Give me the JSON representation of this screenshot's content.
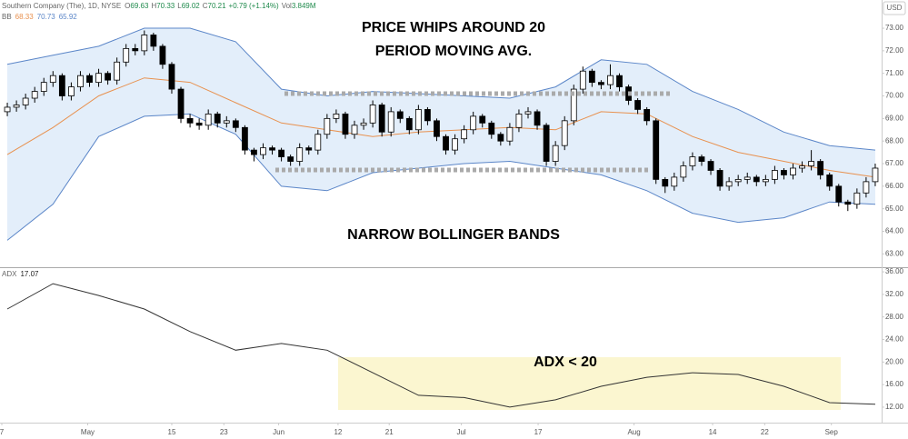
{
  "header": {
    "symbol": "Southern Company (The), 1D, NYSE",
    "ohlc": [
      {
        "label": "O",
        "value": "69.63"
      },
      {
        "label": "H",
        "value": "70.33"
      },
      {
        "label": "L",
        "value": "69.02"
      },
      {
        "label": "C",
        "value": "70.21"
      }
    ],
    "change": "+0.79 (+1.14%)",
    "volume_label": "Vol",
    "volume": "3.849M",
    "bb_label": "BB",
    "bb_values": [
      "68.33",
      "70.73",
      "65.92"
    ],
    "currency": "USD"
  },
  "annotations": [
    "PRICE WHIPS AROUND 20",
    "PERIOD MOVING AVG.",
    "NARROW BOLLINGER BANDS",
    "ADX < 20"
  ],
  "chart_data": [
    {
      "type": "candlestick",
      "up_color": "#ffffff",
      "down_color": "#000000",
      "candles": [
        [
          69.3,
          69.7,
          69.1,
          69.5
        ],
        [
          69.5,
          69.8,
          69.3,
          69.6
        ],
        [
          69.6,
          70.1,
          69.4,
          69.9
        ],
        [
          69.9,
          70.4,
          69.7,
          70.2
        ],
        [
          70.2,
          70.8,
          70.0,
          70.6
        ],
        [
          70.6,
          71.1,
          70.4,
          70.9
        ],
        [
          70.9,
          71.0,
          69.8,
          70.0
        ],
        [
          70.0,
          70.6,
          69.8,
          70.4
        ],
        [
          70.4,
          71.1,
          70.2,
          70.9
        ],
        [
          70.9,
          71.0,
          70.4,
          70.6
        ],
        [
          70.6,
          71.2,
          70.4,
          71.0
        ],
        [
          71.0,
          71.1,
          70.5,
          70.7
        ],
        [
          70.7,
          71.7,
          70.5,
          71.5
        ],
        [
          71.5,
          72.3,
          71.3,
          72.1
        ],
        [
          72.1,
          72.3,
          71.8,
          72.0
        ],
        [
          72.0,
          72.9,
          71.8,
          72.7
        ],
        [
          72.7,
          72.8,
          72.0,
          72.2
        ],
        [
          72.2,
          72.3,
          71.2,
          71.4
        ],
        [
          71.4,
          71.5,
          70.1,
          70.3
        ],
        [
          70.3,
          70.4,
          68.8,
          69.0
        ],
        [
          69.0,
          69.2,
          68.6,
          68.8
        ],
        [
          68.8,
          69.0,
          68.5,
          68.7
        ],
        [
          68.7,
          69.4,
          68.5,
          69.2
        ],
        [
          69.2,
          69.3,
          68.6,
          68.8
        ],
        [
          68.8,
          69.1,
          68.6,
          68.9
        ],
        [
          68.9,
          69.0,
          68.4,
          68.6
        ],
        [
          68.6,
          68.7,
          67.4,
          67.6
        ],
        [
          67.6,
          67.7,
          67.1,
          67.4
        ],
        [
          67.4,
          67.9,
          67.2,
          67.7
        ],
        [
          67.7,
          67.8,
          67.4,
          67.6
        ],
        [
          67.6,
          67.7,
          67.1,
          67.3
        ],
        [
          67.3,
          67.4,
          66.9,
          67.1
        ],
        [
          67.1,
          67.9,
          66.9,
          67.7
        ],
        [
          67.7,
          67.8,
          67.4,
          67.6
        ],
        [
          67.6,
          68.5,
          67.4,
          68.3
        ],
        [
          68.3,
          69.2,
          68.1,
          69.0
        ],
        [
          69.0,
          69.4,
          68.8,
          69.2
        ],
        [
          69.2,
          69.3,
          68.1,
          68.3
        ],
        [
          68.3,
          68.9,
          68.1,
          68.7
        ],
        [
          68.7,
          69.0,
          68.5,
          68.8
        ],
        [
          68.8,
          69.8,
          68.6,
          69.6
        ],
        [
          69.6,
          69.7,
          68.2,
          68.4
        ],
        [
          68.4,
          69.5,
          68.2,
          69.3
        ],
        [
          69.3,
          69.4,
          68.8,
          69.0
        ],
        [
          69.0,
          69.1,
          68.3,
          68.5
        ],
        [
          68.5,
          69.6,
          68.3,
          69.4
        ],
        [
          69.4,
          69.5,
          68.7,
          68.9
        ],
        [
          68.9,
          69.0,
          68.0,
          68.2
        ],
        [
          68.2,
          68.3,
          67.4,
          67.6
        ],
        [
          67.6,
          68.3,
          67.4,
          68.1
        ],
        [
          68.1,
          68.7,
          67.9,
          68.5
        ],
        [
          68.5,
          69.3,
          68.3,
          69.1
        ],
        [
          69.1,
          69.2,
          68.6,
          68.8
        ],
        [
          68.8,
          68.9,
          68.1,
          68.3
        ],
        [
          68.3,
          68.4,
          67.8,
          68.0
        ],
        [
          68.0,
          68.8,
          67.8,
          68.6
        ],
        [
          68.6,
          69.4,
          68.4,
          69.2
        ],
        [
          69.2,
          69.5,
          69.0,
          69.3
        ],
        [
          69.3,
          69.4,
          68.5,
          68.7
        ],
        [
          68.7,
          68.8,
          66.9,
          67.1
        ],
        [
          67.1,
          68.0,
          66.9,
          67.8
        ],
        [
          67.8,
          69.1,
          67.6,
          68.9
        ],
        [
          68.9,
          70.5,
          68.7,
          70.3
        ],
        [
          70.3,
          71.3,
          70.1,
          71.1
        ],
        [
          71.1,
          71.2,
          70.4,
          70.6
        ],
        [
          70.6,
          70.7,
          70.3,
          70.5
        ],
        [
          70.5,
          71.4,
          70.3,
          70.9
        ],
        [
          70.9,
          71.0,
          70.2,
          70.4
        ],
        [
          70.4,
          70.5,
          69.6,
          69.8
        ],
        [
          69.8,
          69.9,
          69.2,
          69.4
        ],
        [
          69.4,
          69.5,
          68.7,
          68.9
        ],
        [
          68.9,
          69.0,
          66.1,
          66.3
        ],
        [
          66.3,
          66.4,
          65.7,
          66.0
        ],
        [
          66.0,
          66.6,
          65.8,
          66.4
        ],
        [
          66.4,
          67.1,
          66.2,
          66.9
        ],
        [
          66.9,
          67.5,
          66.7,
          67.3
        ],
        [
          67.3,
          67.4,
          66.9,
          67.1
        ],
        [
          67.1,
          67.2,
          66.5,
          66.7
        ],
        [
          66.7,
          66.8,
          65.8,
          66.0
        ],
        [
          66.0,
          66.4,
          65.8,
          66.2
        ],
        [
          66.2,
          66.5,
          66.0,
          66.3
        ],
        [
          66.3,
          66.6,
          66.1,
          66.4
        ],
        [
          66.4,
          66.5,
          66.0,
          66.2
        ],
        [
          66.2,
          66.5,
          66.0,
          66.3
        ],
        [
          66.3,
          66.9,
          66.1,
          66.7
        ],
        [
          66.7,
          66.8,
          66.3,
          66.5
        ],
        [
          66.5,
          67.0,
          66.3,
          66.8
        ],
        [
          66.8,
          67.1,
          66.6,
          66.9
        ],
        [
          66.9,
          67.6,
          66.7,
          67.1
        ],
        [
          67.1,
          67.2,
          66.3,
          66.5
        ],
        [
          66.5,
          66.6,
          65.8,
          66.0
        ],
        [
          66.0,
          66.1,
          65.1,
          65.3
        ],
        [
          65.3,
          65.4,
          64.9,
          65.2
        ],
        [
          65.2,
          65.9,
          65.0,
          65.7
        ],
        [
          65.7,
          66.4,
          65.5,
          66.2
        ],
        [
          66.2,
          67.0,
          66.0,
          66.8
        ]
      ],
      "band_fill": "#e3eefa",
      "series": [
        {
          "color": "#5b86c8",
          "x": [
            0,
            5,
            10,
            15,
            20,
            25,
            30,
            35,
            40,
            45,
            50,
            55,
            60,
            65,
            70,
            75,
            80,
            85,
            90,
            95
          ],
          "values": [
            71.4,
            71.8,
            72.2,
            73.0,
            73.0,
            72.4,
            70.3,
            70.0,
            70.2,
            70.1,
            70.0,
            69.9,
            70.4,
            71.6,
            71.4,
            70.2,
            69.4,
            68.4,
            67.8,
            67.6
          ]
        },
        {
          "color": "#e8914f",
          "x": [
            0,
            5,
            10,
            15,
            20,
            25,
            30,
            35,
            40,
            45,
            50,
            55,
            60,
            65,
            70,
            75,
            80,
            85,
            90,
            95
          ],
          "values": [
            67.4,
            68.6,
            70.0,
            70.8,
            70.6,
            69.7,
            68.8,
            68.5,
            68.2,
            68.4,
            68.5,
            68.6,
            68.5,
            69.3,
            69.2,
            68.2,
            67.5,
            67.1,
            66.7,
            66.4
          ]
        },
        {
          "color": "#5b86c8",
          "x": [
            0,
            5,
            10,
            15,
            20,
            25,
            30,
            35,
            40,
            45,
            50,
            55,
            60,
            65,
            70,
            75,
            80,
            85,
            90,
            95
          ],
          "values": [
            63.6,
            65.2,
            68.2,
            69.1,
            69.2,
            68.3,
            66.0,
            65.8,
            66.6,
            66.8,
            67.0,
            67.1,
            66.8,
            66.5,
            65.8,
            64.8,
            64.4,
            64.6,
            65.3,
            65.2
          ]
        }
      ],
      "xlim": [
        -0.8,
        95.7
      ],
      "ylim": [
        62.45,
        74.25
      ],
      "yticks": [
        {
          "value": 63,
          "label": "63.00"
        },
        {
          "value": 64,
          "label": "64.00"
        },
        {
          "value": 65,
          "label": "65.00"
        },
        {
          "value": 66,
          "label": "66.00"
        },
        {
          "value": 67,
          "label": "67.00"
        },
        {
          "value": 68,
          "label": "68.00"
        },
        {
          "value": 69,
          "label": "69.00"
        },
        {
          "value": 70,
          "label": "70.00"
        },
        {
          "value": 71,
          "label": "71.00"
        },
        {
          "value": 72,
          "label": "72.00"
        },
        {
          "value": 73,
          "label": "73.00"
        }
      ]
    },
    {
      "type": "line",
      "series": [
        {
          "color": "#333333",
          "x": [
            0,
            5,
            10,
            15,
            20,
            25,
            30,
            35,
            40,
            45,
            50,
            55,
            60,
            65,
            70,
            75,
            80,
            85,
            90,
            95
          ],
          "values": [
            29.4,
            33.9,
            31.8,
            29.4,
            25.4,
            22.1,
            23.3,
            22.1,
            18.1,
            14.1,
            13.7,
            12.0,
            13.3,
            15.7,
            17.3,
            18.1,
            17.8,
            15.7,
            12.8,
            12.5
          ]
        }
      ],
      "legend_label": "ADX",
      "legend_value": "17.07",
      "xlim": [
        -0.8,
        95.7
      ],
      "ylim": [
        9.25,
        36.5
      ],
      "xticks": [
        {
          "value": -0.6,
          "label": "7"
        },
        {
          "value": 8.8,
          "label": "May"
        },
        {
          "value": 18,
          "label": "15"
        },
        {
          "value": 23.7,
          "label": "23"
        },
        {
          "value": 29.7,
          "label": "Jun"
        },
        {
          "value": 36.2,
          "label": "12"
        },
        {
          "value": 41.8,
          "label": "21"
        },
        {
          "value": 49.7,
          "label": "Jul"
        },
        {
          "value": 58.1,
          "label": "17"
        },
        {
          "value": 68.6,
          "label": "Aug"
        },
        {
          "value": 77.2,
          "label": "14"
        },
        {
          "value": 82.9,
          "label": "22"
        },
        {
          "value": 90.2,
          "label": "Sep"
        }
      ],
      "yticks": [
        {
          "value": 12,
          "label": "12.00"
        },
        {
          "value": 16,
          "label": "16.00"
        },
        {
          "value": 20,
          "label": "20.00"
        },
        {
          "value": 24,
          "label": "24.00"
        },
        {
          "value": 28,
          "label": "28.00"
        },
        {
          "value": 32,
          "label": "32.00"
        },
        {
          "value": 36,
          "label": "36.00"
        }
      ]
    }
  ]
}
